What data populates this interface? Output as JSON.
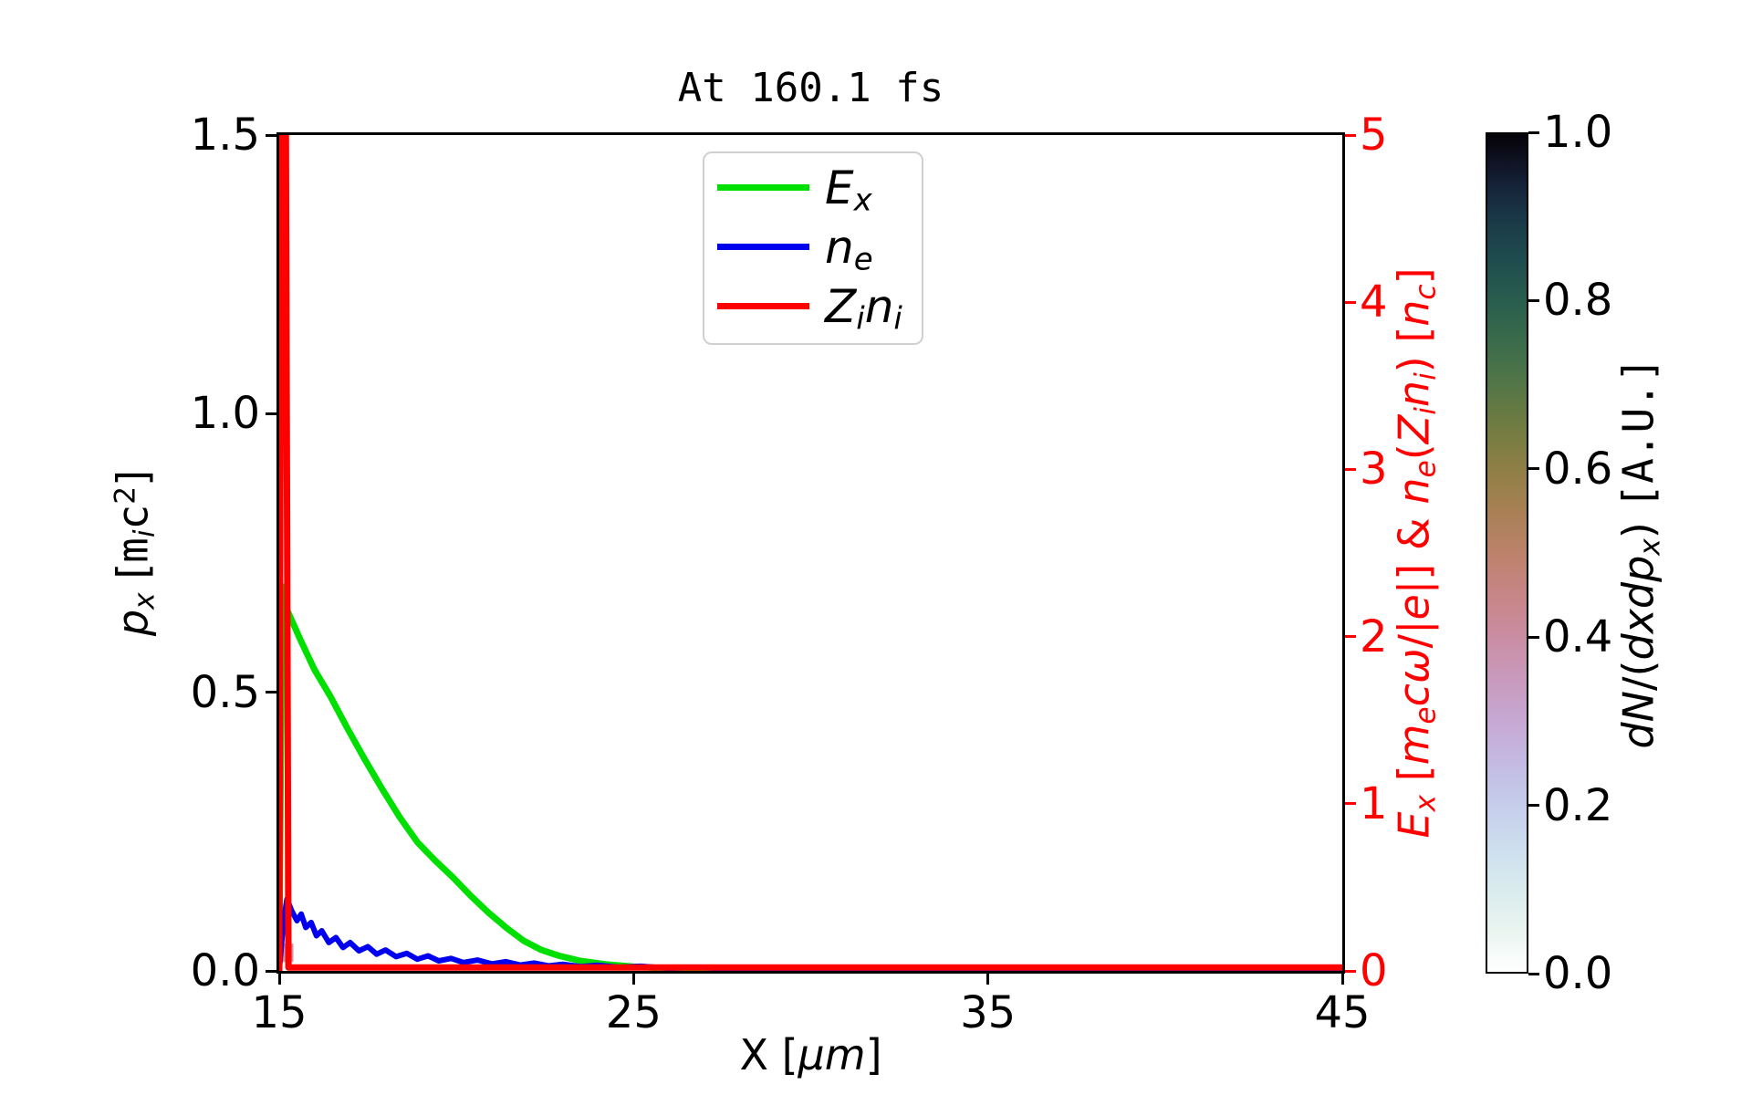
{
  "title": "At 160.1 fs",
  "axes": {
    "x": {
      "label_text": "X [μm]",
      "label_parts": [
        {
          "t": "X [",
          "c": "n"
        },
        {
          "t": "μm",
          "c": "i"
        },
        {
          "t": "]",
          "c": "n"
        }
      ],
      "tick_labels": [
        "15",
        "25",
        "35",
        "45"
      ],
      "tick_values": [
        15,
        25,
        35,
        45
      ],
      "range": [
        15,
        45
      ],
      "color": "#000000"
    },
    "y_left": {
      "label_text": "p_x [m_i c²]",
      "label_parts": [
        {
          "t": "p",
          "c": "i"
        },
        {
          "t": "x",
          "c": "is"
        },
        {
          "t": " [",
          "c": "n"
        },
        {
          "t": "m",
          "c": "m"
        },
        {
          "t": "i",
          "c": "is"
        },
        {
          "t": "c",
          "c": "m"
        },
        {
          "t": "2",
          "c": "p"
        },
        {
          "t": "]",
          "c": "n"
        }
      ],
      "tick_labels": [
        "1.5",
        "1.0",
        "0.5",
        "0.0"
      ],
      "tick_values": [
        1.5,
        1.0,
        0.5,
        0.0
      ],
      "range": [
        0,
        1.5
      ],
      "color": "#000000"
    },
    "y_right": {
      "label_text": "E_x [m_e cω/|e|] & n_e(Z_i n_i) [n_c]",
      "label_parts": [
        {
          "t": "E",
          "c": "i"
        },
        {
          "t": "x",
          "c": "is"
        },
        {
          "t": " [",
          "c": "n"
        },
        {
          "t": "m",
          "c": "i"
        },
        {
          "t": "e",
          "c": "is"
        },
        {
          "t": "c",
          "c": "i"
        },
        {
          "t": "ω",
          "c": "i"
        },
        {
          "t": "/|",
          "c": "n"
        },
        {
          "t": "e",
          "c": "i"
        },
        {
          "t": "|] & ",
          "c": "n"
        },
        {
          "t": "n",
          "c": "i"
        },
        {
          "t": "e",
          "c": "is"
        },
        {
          "t": "(",
          "c": "n"
        },
        {
          "t": "Z",
          "c": "i"
        },
        {
          "t": "i",
          "c": "is"
        },
        {
          "t": "n",
          "c": "i"
        },
        {
          "t": "i",
          "c": "is"
        },
        {
          "t": ") [",
          "c": "n"
        },
        {
          "t": "n",
          "c": "i"
        },
        {
          "t": "c",
          "c": "is"
        },
        {
          "t": "]",
          "c": "n"
        }
      ],
      "tick_labels": [
        "5",
        "4",
        "3",
        "2",
        "1",
        "0"
      ],
      "tick_values": [
        5,
        4,
        3,
        2,
        1,
        0
      ],
      "range": [
        0,
        5
      ],
      "color": "#ff0000"
    }
  },
  "legend": {
    "entries": [
      {
        "label_text": "E_x",
        "label_parts": [
          {
            "t": "E",
            "c": "i"
          },
          {
            "t": "x",
            "c": "is"
          }
        ],
        "color": "#00e000"
      },
      {
        "label_text": "n_e",
        "label_parts": [
          {
            "t": "n",
            "c": "i"
          },
          {
            "t": "e",
            "c": "is"
          }
        ],
        "color": "#0000ee"
      },
      {
        "label_text": "Z_i n_i",
        "label_parts": [
          {
            "t": "Z",
            "c": "i"
          },
          {
            "t": "i",
            "c": "is"
          },
          {
            "t": "n",
            "c": "i"
          },
          {
            "t": "i",
            "c": "is"
          }
        ],
        "color": "#ff0000"
      }
    ]
  },
  "colorbar": {
    "label_text": "dN/(dxdp_x) [A.U.]",
    "label_parts": [
      {
        "t": "dN",
        "c": "i"
      },
      {
        "t": "/(",
        "c": "n"
      },
      {
        "t": "dxdp",
        "c": "i"
      },
      {
        "t": "x",
        "c": "is"
      },
      {
        "t": ") ",
        "c": "n"
      },
      {
        "t": "[A.U.]",
        "c": "m"
      }
    ],
    "tick_labels": [
      "1.0",
      "0.8",
      "0.6",
      "0.4",
      "0.2",
      "0.0"
    ],
    "tick_values": [
      1.0,
      0.8,
      0.6,
      0.4,
      0.2,
      0.0
    ],
    "range": [
      0,
      1
    ],
    "colormap": "cubehelix reversed (white low, black high)",
    "stops": [
      {
        "v": 0.0,
        "color": "#ffffff"
      },
      {
        "v": 0.05,
        "color": "#e9f4ef"
      },
      {
        "v": 0.1,
        "color": "#d9ebee"
      },
      {
        "v": 0.15,
        "color": "#cdddee"
      },
      {
        "v": 0.2,
        "color": "#c5cdeb"
      },
      {
        "v": 0.25,
        "color": "#c4bae2"
      },
      {
        "v": 0.3,
        "color": "#c6a8d3"
      },
      {
        "v": 0.35,
        "color": "#c99abd"
      },
      {
        "v": 0.4,
        "color": "#ca8da2"
      },
      {
        "v": 0.45,
        "color": "#c78586"
      },
      {
        "v": 0.5,
        "color": "#bc826b"
      },
      {
        "v": 0.55,
        "color": "#a88054"
      },
      {
        "v": 0.6,
        "color": "#8f7f46"
      },
      {
        "v": 0.65,
        "color": "#717c41"
      },
      {
        "v": 0.7,
        "color": "#547646"
      },
      {
        "v": 0.75,
        "color": "#3b6c4b"
      },
      {
        "v": 0.8,
        "color": "#295e4e"
      },
      {
        "v": 0.85,
        "color": "#1f4c4e"
      },
      {
        "v": 0.9,
        "color": "#1a3847"
      },
      {
        "v": 0.94,
        "color": "#152238"
      },
      {
        "v": 0.97,
        "color": "#0e1120"
      },
      {
        "v": 1.0,
        "color": "#050208"
      }
    ]
  },
  "chart_data": {
    "type": "line",
    "title": "At 160.1 fs",
    "xlabel": "X [μm]",
    "ylabel_left": "p_x [m_i c²]",
    "ylabel_right": "E_x [m_e cω/|e|] & n_e(Z_i n_i) [n_c]",
    "xlim": [
      15,
      45
    ],
    "ylim_left": [
      0,
      1.5
    ],
    "ylim_right": [
      0,
      5
    ],
    "grid": false,
    "legend_position": "upper center",
    "series": [
      {
        "name": "E_x",
        "axis": "right",
        "color": "#00e000",
        "linewidth": 7,
        "x": [
          15.0,
          15.08,
          15.2,
          15.6,
          16.0,
          16.45,
          16.9,
          17.4,
          17.9,
          18.4,
          18.9,
          19.4,
          19.9,
          20.4,
          20.9,
          21.4,
          21.9,
          22.4,
          22.9,
          23.5,
          24.2,
          25.0,
          26.0,
          27.0,
          28.5,
          31.0,
          35.0,
          45.0
        ],
        "y": [
          0,
          2.3,
          2.17,
          1.98,
          1.8,
          1.64,
          1.46,
          1.27,
          1.09,
          0.92,
          0.77,
          0.66,
          0.56,
          0.45,
          0.35,
          0.26,
          0.18,
          0.125,
          0.09,
          0.06,
          0.04,
          0.025,
          0.015,
          0.008,
          0.004,
          0.002,
          0.001,
          0.001
        ]
      },
      {
        "name": "n_e",
        "axis": "right",
        "color": "#0000ee",
        "linewidth": 6,
        "x": [
          15.0,
          15.12,
          15.22,
          15.35,
          15.5,
          15.62,
          15.75,
          15.9,
          16.05,
          16.2,
          16.4,
          16.6,
          16.8,
          17.0,
          17.25,
          17.5,
          17.75,
          18.0,
          18.3,
          18.6,
          18.9,
          19.2,
          19.5,
          19.85,
          20.2,
          20.6,
          21.0,
          21.4,
          21.8,
          22.2,
          22.6,
          23.0,
          23.5,
          24.0,
          24.6,
          25.2,
          26.0,
          26.8,
          27.6,
          28.4,
          29.5,
          31.0,
          33.0,
          36.0,
          40.0,
          45.0
        ],
        "y": [
          0,
          0.3,
          0.43,
          0.36,
          0.3,
          0.34,
          0.26,
          0.29,
          0.21,
          0.24,
          0.17,
          0.2,
          0.14,
          0.17,
          0.12,
          0.145,
          0.1,
          0.125,
          0.085,
          0.105,
          0.07,
          0.09,
          0.06,
          0.075,
          0.05,
          0.065,
          0.042,
          0.055,
          0.035,
          0.047,
          0.03,
          0.04,
          0.026,
          0.034,
          0.022,
          0.028,
          0.016,
          0.022,
          0.012,
          0.016,
          0.009,
          0.012,
          0.007,
          0.009,
          0.005,
          0.004
        ]
      },
      {
        "name": "Z_i n_i",
        "axis": "right",
        "color": "#ff0000",
        "linewidth": 7,
        "x": [
          15.0,
          15.06,
          15.18,
          15.26,
          45.0
        ],
        "y": [
          0,
          5.5,
          5.5,
          0.02,
          0.02
        ]
      }
    ],
    "histogram_cells": [
      {
        "x0": 15.05,
        "x1": 15.4,
        "p0": 0.016,
        "p1": 0.049,
        "color": "#c79aa3"
      }
    ]
  }
}
